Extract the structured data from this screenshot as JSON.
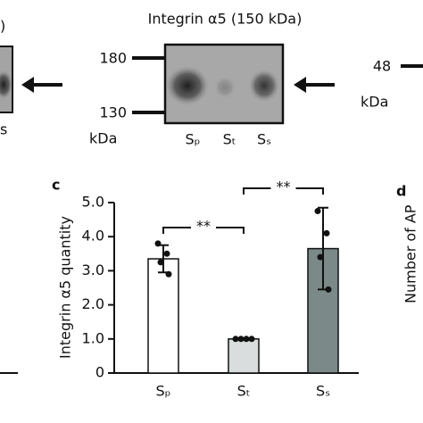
{
  "blot": {
    "left_cut_text": ")",
    "left_cut_lane": "s",
    "title": "Integrin α5 (150 kDa)",
    "markers": [
      "180",
      "130"
    ],
    "unit": "kDa",
    "lanes": [
      "Sₚ",
      "Sₜ",
      "Sₛ"
    ],
    "right_marker": "48",
    "right_unit": "kDa"
  },
  "panels": {
    "c": "c",
    "d": "d",
    "d_ylabel": "Number of AP"
  },
  "chart_data": {
    "type": "bar",
    "ylabel": "Integrin α5 quantity",
    "categories": [
      "Sₚ",
      "Sₜ",
      "Sₛ"
    ],
    "values": [
      3.35,
      1.0,
      3.65
    ],
    "errors": [
      0.4,
      0.02,
      1.2
    ],
    "points": [
      [
        3.8,
        3.5,
        3.25,
        2.9
      ],
      [
        1.0,
        1.0,
        1.0,
        1.0
      ],
      [
        4.75,
        4.1,
        3.4,
        2.45
      ]
    ],
    "colors": [
      "#ffffff",
      "#d9dddd",
      "#7b8989"
    ],
    "ylim": [
      0,
      5
    ],
    "yticks": [
      0,
      {
        "value": 1,
        "label": "1.0"
      },
      {
        "value": 2,
        "label": "2.0"
      },
      {
        "value": 3,
        "label": "3.0"
      },
      {
        "value": 4,
        "label": "4.0"
      },
      {
        "value": 5,
        "label": "5.0"
      }
    ],
    "annotations": [
      "**",
      "**"
    ]
  }
}
